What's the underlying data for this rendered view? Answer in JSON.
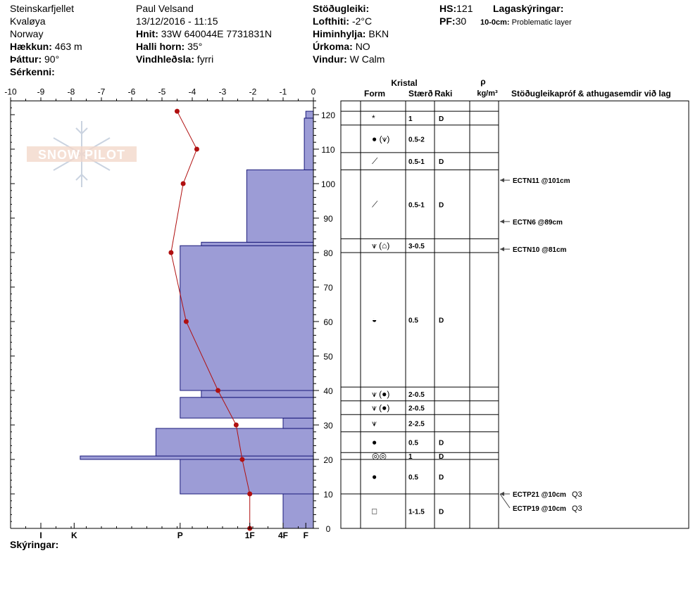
{
  "header": {
    "location": "Steinskarfjellet",
    "region": "Kvaløya",
    "country": "Norway",
    "elevation_label": "Hækkun:",
    "elevation": "463 m",
    "aspect_label": "Þáttur:",
    "aspect": "90°",
    "features_label": "Sérkenni:",
    "observer": "Paul Velsand",
    "datetime": "13/12/2016 - 11:15",
    "coords_label": "Hnit:",
    "coords": "33W 640044E 7731831N",
    "slope_label": "Halli horn:",
    "slope": "35°",
    "wind_loading_label": "Vindhleðsla:",
    "wind_loading": "fyrri",
    "stability_label": "Stöðugleiki:",
    "air_temp_label": "Lofthiti:",
    "air_temp": "-2°C",
    "sky_label": "Himinhylja:",
    "sky": "BKN",
    "precip_label": "Úrkoma:",
    "precip": "NO",
    "wind_label": "Vindur:",
    "wind": "W Calm",
    "hs_label": "HS:",
    "hs": "121",
    "pf_label": "PF:",
    "pf": "30",
    "layer_notes_label": "Lagaskýringar:",
    "layer_note_depth": "10-0cm:",
    "layer_note_text": "Problematic layer",
    "notes_label": "Skýringar:"
  },
  "logo_text": "SNOW PILOT",
  "colors": {
    "hardness_fill": "#9c9cd6",
    "hardness_stroke": "#1a1a7a",
    "temp_line": "#b01010",
    "temp_point": "#b01010"
  },
  "table_headers": {
    "kristal": "Kristal",
    "form": "Form",
    "size": "Stærð",
    "moisture": "Raki",
    "rho": "ρ",
    "density_unit": "kg/m³",
    "tests": "Stöðugleikapróf & athugasemdir við lag"
  },
  "chart_data": {
    "type": "snow_profile",
    "temperature_axis": {
      "min": -10,
      "max": 0,
      "ticks": [
        "-10",
        "-9",
        "-8",
        "-7",
        "-6",
        "-5",
        "-4",
        "-3",
        "-2",
        "-1",
        "0"
      ]
    },
    "height_axis": {
      "min": 0,
      "max": 125,
      "ticks": [
        "0",
        "10",
        "20",
        "30",
        "40",
        "50",
        "60",
        "70",
        "80",
        "90",
        "100",
        "110",
        "120"
      ]
    },
    "hardness_axis": {
      "labels": [
        "I",
        "K",
        "P",
        "1F",
        "4F",
        "F"
      ],
      "values": [
        9.0,
        7.9,
        4.4,
        2.1,
        1.0,
        0.25
      ]
    },
    "hardness_bars": [
      {
        "bottom": 0,
        "top": 10,
        "hardness": 1.0
      },
      {
        "bottom": 10,
        "top": 20,
        "hardness": 4.4
      },
      {
        "bottom": 20,
        "top": 21,
        "hardness": 7.7
      },
      {
        "bottom": 21,
        "top": 29,
        "hardness": 5.2
      },
      {
        "bottom": 29,
        "top": 32,
        "hardness": 1.0
      },
      {
        "bottom": 32,
        "top": 38,
        "hardness": 4.4
      },
      {
        "bottom": 38,
        "top": 40,
        "hardness": 3.7
      },
      {
        "bottom": 40,
        "top": 82,
        "hardness": 4.4
      },
      {
        "bottom": 82,
        "top": 83,
        "hardness": 3.7
      },
      {
        "bottom": 83,
        "top": 104,
        "hardness": 2.2
      },
      {
        "bottom": 104,
        "top": 119,
        "hardness": 0.3
      },
      {
        "bottom": 119,
        "top": 121,
        "hardness": 0.25
      }
    ],
    "temperature_profile": [
      {
        "height": 0,
        "temp": -2.1
      },
      {
        "height": 10,
        "temp": -2.1
      },
      {
        "height": 20,
        "temp": -2.35
      },
      {
        "height": 30,
        "temp": -2.55
      },
      {
        "height": 40,
        "temp": -3.15
      },
      {
        "height": 60,
        "temp": -4.2
      },
      {
        "height": 80,
        "temp": -4.7
      },
      {
        "height": 100,
        "temp": -4.3
      },
      {
        "height": 110,
        "temp": -3.85
      },
      {
        "height": 121,
        "temp": -4.5
      }
    ],
    "layers": [
      {
        "top": 121,
        "bottom": 117,
        "form": "*",
        "size": "1",
        "moisture": "D"
      },
      {
        "top": 117,
        "bottom": 109,
        "form": "● (⩛)",
        "size": "0.5-2",
        "moisture": ""
      },
      {
        "top": 109,
        "bottom": 104,
        "form": "⟋",
        "size": "0.5-1",
        "moisture": "D"
      },
      {
        "top": 104,
        "bottom": 84,
        "form": "⟋",
        "size": "0.5-1",
        "moisture": "D"
      },
      {
        "top": 84,
        "bottom": 80,
        "form": "⩛ (⌂)",
        "size": "3-0.5",
        "moisture": ""
      },
      {
        "top": 80,
        "bottom": 41,
        "form": "◒",
        "size": "0.5",
        "moisture": "D"
      },
      {
        "top": 41,
        "bottom": 37,
        "form": "⩛ (●)",
        "size": "2-0.5",
        "moisture": ""
      },
      {
        "top": 37,
        "bottom": 33,
        "form": "⩛ (●)",
        "size": "2-0.5",
        "moisture": ""
      },
      {
        "top": 33,
        "bottom": 28,
        "form": "⩛",
        "size": "2-2.5",
        "moisture": ""
      },
      {
        "top": 28,
        "bottom": 22,
        "form": "●",
        "size": "0.5",
        "moisture": "D"
      },
      {
        "top": 22,
        "bottom": 20,
        "form": "◎◎",
        "size": "1",
        "moisture": "D"
      },
      {
        "top": 20,
        "bottom": 10,
        "form": "●",
        "size": "0.5",
        "moisture": "D"
      },
      {
        "top": 10,
        "bottom": 0,
        "form": "□",
        "size": "1-1.5",
        "moisture": "D"
      }
    ],
    "tests": [
      {
        "height": 101,
        "label": "ECTN11 @101cm",
        "quality": ""
      },
      {
        "height": 89,
        "label": "ECTN6 @89cm",
        "quality": ""
      },
      {
        "height": 81,
        "label": "ECTN10 @81cm",
        "quality": ""
      },
      {
        "height": 10,
        "label": "ECTP21 @10cm",
        "quality": "Q3"
      },
      {
        "height": 10,
        "label": "ECTP19 @10cm",
        "quality": "Q3"
      }
    ]
  }
}
